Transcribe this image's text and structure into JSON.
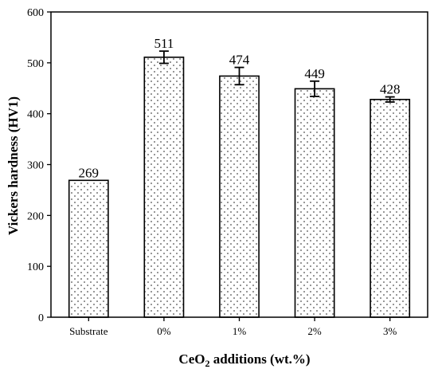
{
  "chart_data": {
    "type": "bar",
    "categories": [
      "Substrate",
      "0%",
      "1%",
      "2%",
      "3%"
    ],
    "values": [
      269,
      511,
      474,
      449,
      428
    ],
    "errors": [
      0,
      12,
      17,
      15,
      5
    ],
    "data_labels": [
      "269",
      "511",
      "474",
      "449",
      "428"
    ],
    "xlabel_prefix": "CeO",
    "xlabel_sub": "2",
    "xlabel_suffix": " additions (wt.%)",
    "ylabel": "Vickers hardness (HV1)",
    "ylim": [
      0,
      600
    ],
    "yticks": [
      0,
      100,
      200,
      300,
      400,
      500,
      600
    ],
    "grid": false,
    "legend": "none",
    "bar_fill": "dotted pattern",
    "colors": {
      "bar_fill": "#ffffff",
      "bar_dots": "#777777",
      "stroke": "#000000"
    }
  }
}
